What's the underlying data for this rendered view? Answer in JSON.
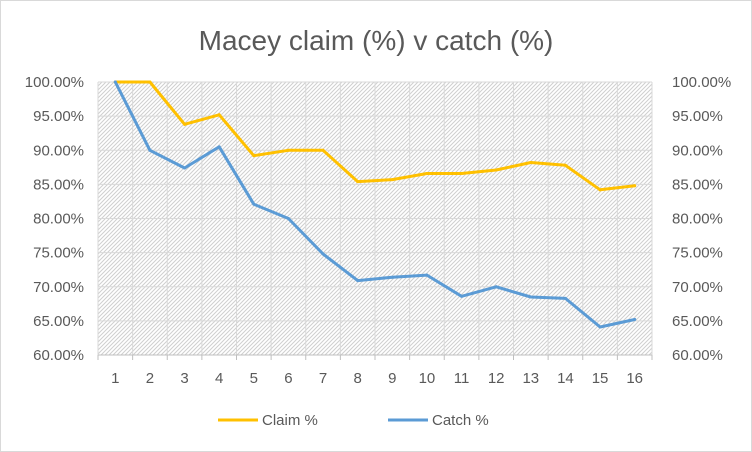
{
  "chart_data": {
    "type": "line",
    "title": "Macey claim (%) v catch (%)",
    "categories": [
      "1",
      "2",
      "3",
      "4",
      "5",
      "6",
      "7",
      "8",
      "9",
      "10",
      "11",
      "12",
      "13",
      "14",
      "15",
      "16"
    ],
    "series": [
      {
        "name": "Claim %",
        "color": "#FFC000",
        "values": [
          100.0,
          100.0,
          93.8,
          95.2,
          89.2,
          90.0,
          90.0,
          85.4,
          85.7,
          86.6,
          86.6,
          87.1,
          88.2,
          87.8,
          84.2,
          84.8
        ]
      },
      {
        "name": "Catch %",
        "color": "#5B9BD5",
        "values": [
          100.0,
          90.0,
          87.4,
          90.5,
          82.1,
          80.0,
          74.8,
          70.9,
          71.4,
          71.7,
          68.6,
          70.0,
          68.5,
          68.3,
          64.1,
          65.2
        ]
      }
    ],
    "ylim": [
      60,
      100
    ],
    "y_ticks": [
      "60.00%",
      "65.00%",
      "70.00%",
      "75.00%",
      "80.00%",
      "85.00%",
      "90.00%",
      "95.00%",
      "100.00%"
    ],
    "secondary_y_ticks": [
      "60.00%",
      "65.00%",
      "70.00%",
      "75.00%",
      "80.00%",
      "85.00%",
      "90.00%",
      "95.00%",
      "100.00%"
    ],
    "grid": true,
    "legend_position": "bottom"
  }
}
